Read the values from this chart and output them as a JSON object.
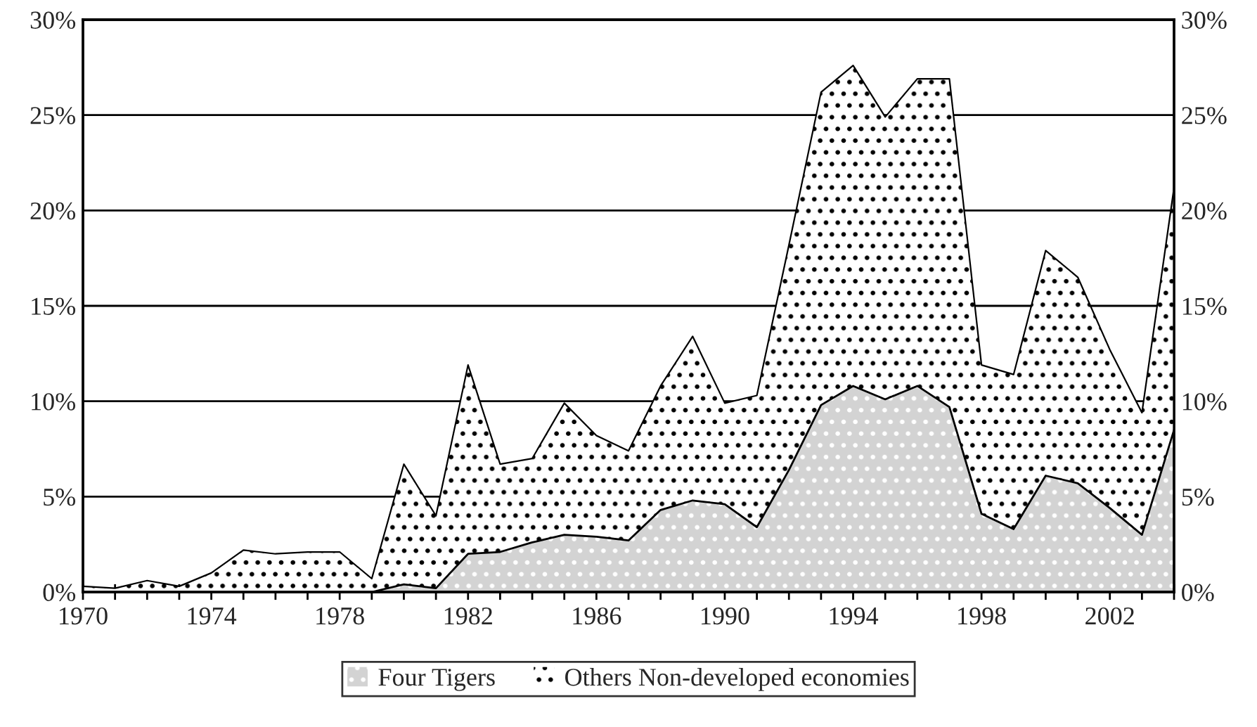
{
  "chart_data": {
    "type": "area",
    "stacked": true,
    "x": [
      1970,
      1971,
      1972,
      1973,
      1974,
      1975,
      1976,
      1977,
      1978,
      1979,
      1980,
      1981,
      1982,
      1983,
      1984,
      1985,
      1986,
      1987,
      1988,
      1989,
      1990,
      1991,
      1992,
      1993,
      1994,
      1995,
      1996,
      1997,
      1998,
      1999,
      2000,
      2001,
      2002,
      2003,
      2004
    ],
    "series": [
      {
        "name": "Four Tigers",
        "color": "#d3d3d3",
        "values": [
          0,
          0,
          0,
          0,
          0,
          0,
          0,
          0,
          0,
          0,
          0.4,
          0.2,
          2.0,
          2.1,
          2.6,
          3.0,
          2.9,
          2.7,
          4.3,
          4.8,
          4.6,
          3.4,
          6.4,
          9.8,
          10.8,
          10.1,
          10.8,
          9.7,
          4.1,
          3.3,
          6.1,
          5.7,
          4.4,
          3.0,
          8.5
        ]
      },
      {
        "name": "Others Non-developed economies",
        "color": "#ffffff",
        "values": [
          0.3,
          0.2,
          0.6,
          0.3,
          1.0,
          2.2,
          2.0,
          2.1,
          2.1,
          0.7,
          6.3,
          3.8,
          9.9,
          4.6,
          4.4,
          6.9,
          5.3,
          4.7,
          6.5,
          8.6,
          5.3,
          6.9,
          11.8,
          16.4,
          16.8,
          14.8,
          16.1,
          17.2,
          7.8,
          8.1,
          11.8,
          10.8,
          8.3,
          6.4,
          12.7
        ]
      }
    ],
    "xlim": [
      1970,
      2004
    ],
    "xticks": [
      1970,
      {
        "value": 1971,
        "label": null
      },
      {
        "value": 1972,
        "label": null
      },
      {
        "value": 1973,
        "label": null
      },
      1974,
      {
        "value": 1975,
        "label": null
      },
      {
        "value": 1976,
        "label": null
      },
      {
        "value": 1977,
        "label": null
      },
      1978,
      {
        "value": 1979,
        "label": null
      },
      {
        "value": 1980,
        "label": null
      },
      {
        "value": 1981,
        "label": null
      },
      1982,
      {
        "value": 1983,
        "label": null
      },
      {
        "value": 1984,
        "label": null
      },
      {
        "value": 1985,
        "label": null
      },
      1986,
      {
        "value": 1987,
        "label": null
      },
      {
        "value": 1988,
        "label": null
      },
      {
        "value": 1989,
        "label": null
      },
      1990,
      {
        "value": 1991,
        "label": null
      },
      {
        "value": 1992,
        "label": null
      },
      {
        "value": 1993,
        "label": null
      },
      1994,
      {
        "value": 1995,
        "label": null
      },
      {
        "value": 1996,
        "label": null
      },
      {
        "value": 1997,
        "label": null
      },
      1998,
      {
        "value": 1999,
        "label": null
      },
      {
        "value": 2000,
        "label": null
      },
      {
        "value": 2001,
        "label": null
      },
      2002,
      {
        "value": 2003,
        "label": null
      },
      {
        "value": 2004,
        "label": null
      }
    ],
    "ylim": [
      0,
      30
    ],
    "yticks": [
      {
        "value": 0,
        "label": "0%"
      },
      {
        "value": 5,
        "label": "5%"
      },
      {
        "value": 10,
        "label": "10%"
      },
      {
        "value": 15,
        "label": "15%"
      },
      {
        "value": 20,
        "label": "20%"
      },
      {
        "value": 25,
        "label": "25%"
      },
      {
        "value": 30,
        "label": "30%"
      }
    ],
    "y2lim": [
      0,
      30
    ],
    "y2ticks": [
      {
        "value": 0,
        "label": "0%"
      },
      {
        "value": 5,
        "label": "5%"
      },
      {
        "value": 10,
        "label": "10%"
      },
      {
        "value": 15,
        "label": "15%"
      },
      {
        "value": 20,
        "label": "20%"
      },
      {
        "value": 25,
        "label": "25%"
      },
      {
        "value": 30,
        "label": "30%"
      }
    ],
    "grid": "y",
    "legend": "bottom"
  }
}
